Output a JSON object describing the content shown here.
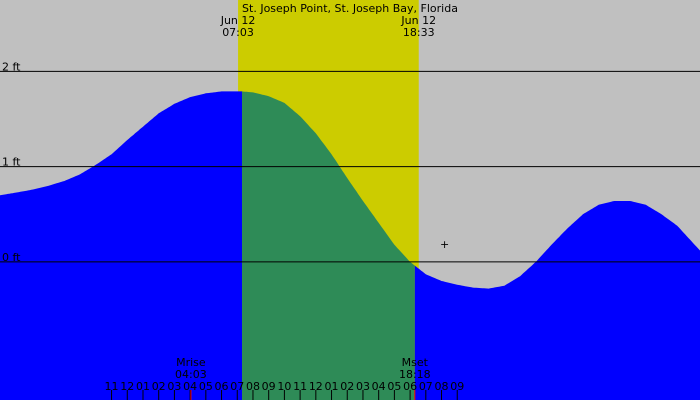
{
  "chart_data": {
    "type": "area",
    "title": "St. Joseph Point, St. Joseph Bay, Florida",
    "xlabel": "",
    "ylabel": "",
    "ylim": [
      -1.45,
      2.75
    ],
    "xlim": [
      -8.1,
      36.45
    ],
    "y_ticks": [
      {
        "value": 0,
        "label": "0 ft"
      },
      {
        "value": 1,
        "label": "1 ft"
      },
      {
        "value": 2,
        "label": "2 ft"
      }
    ],
    "x_tick_labels": [
      "11",
      "12",
      "01",
      "02",
      "03",
      "04",
      "05",
      "06",
      "07",
      "08",
      "09",
      "10",
      "11",
      "12",
      "01",
      "02",
      "03",
      "04",
      "05",
      "06",
      "07",
      "08",
      "09"
    ],
    "x_tick_first_hour": -1,
    "daylight": {
      "sunrise": {
        "date": "Jun 12",
        "time": "07:03",
        "hour": 7.05
      },
      "sunset": {
        "date": "Jun 12",
        "time": "18:33",
        "hour": 18.55
      }
    },
    "moon": {
      "rise": {
        "label": "Mrise",
        "time": "04:03",
        "hour": 4.05
      },
      "set": {
        "label": "Mset",
        "time": "18:18",
        "hour": 18.3
      }
    },
    "marker": {
      "symbol": "+",
      "hour": 20.2,
      "value": 0.19
    },
    "now_hour": 7.3,
    "series": [
      {
        "x": [
          -8.1,
          -7,
          -6,
          -5,
          -4,
          -3,
          -2,
          -1,
          0,
          1,
          2,
          3,
          4,
          5,
          6,
          7,
          7.3,
          8,
          9,
          10,
          11,
          12,
          13,
          14,
          15,
          16,
          17,
          18,
          19,
          20,
          21,
          22,
          23,
          24,
          25,
          26,
          27,
          28,
          29,
          30,
          31,
          32,
          33,
          34,
          35,
          36,
          36.45
        ],
        "values": [
          0.7,
          0.73,
          0.76,
          0.8,
          0.85,
          0.92,
          1.02,
          1.13,
          1.28,
          1.42,
          1.56,
          1.66,
          1.73,
          1.77,
          1.79,
          1.79,
          1.79,
          1.78,
          1.74,
          1.67,
          1.53,
          1.35,
          1.13,
          0.88,
          0.64,
          0.41,
          0.18,
          0.0,
          -0.13,
          -0.2,
          -0.24,
          -0.27,
          -0.28,
          -0.25,
          -0.15,
          0.0,
          0.18,
          0.35,
          0.5,
          0.6,
          0.64,
          0.64,
          0.6,
          0.5,
          0.38,
          0.2,
          0.12
        ]
      }
    ],
    "colors": {
      "background": "#c0c0c0",
      "daylight": "#cccc00",
      "tide_past": "#0000ff",
      "tide_future": "#2e8b57",
      "moon_marker": "#ff0000"
    }
  }
}
